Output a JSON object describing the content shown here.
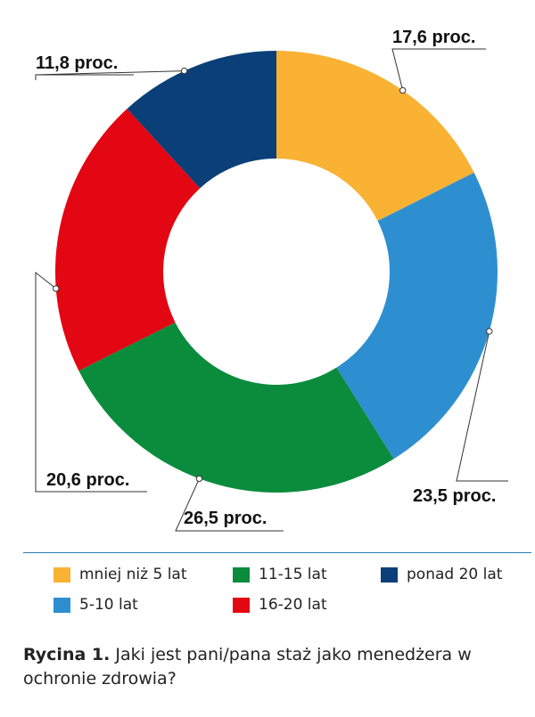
{
  "chart_data": {
    "type": "pie",
    "donut": true,
    "categories": [
      "mniej niż 5 lat",
      "5-10 lat",
      "11-15 lat",
      "16-20 lat",
      "ponad 20 lat"
    ],
    "values": [
      17.6,
      23.5,
      26.5,
      20.6,
      11.8
    ],
    "value_labels": [
      "17,6 proc.",
      "23,5 proc.",
      "26,5 proc.",
      "20,6 proc.",
      "11,8 proc."
    ],
    "colors": [
      "#f9b233",
      "#2e8fd0",
      "#0a8c3c",
      "#e30613",
      "#0a3f78"
    ],
    "legend_position": "bottom"
  },
  "legend": [
    {
      "label": "mniej niż 5 lat",
      "color": "#f9b233"
    },
    {
      "label": "11-15 lat",
      "color": "#0a8c3c"
    },
    {
      "label": "ponad 20 lat",
      "color": "#0a3f78"
    },
    {
      "label": "5-10 lat",
      "color": "#2e8fd0"
    },
    {
      "label": "16-20 lat",
      "color": "#e30613"
    }
  ],
  "caption": {
    "prefix": "Rycina 1.",
    "text": " Jaki jest pani/pana staż jako menedżera w ochronie zdrowia?"
  }
}
